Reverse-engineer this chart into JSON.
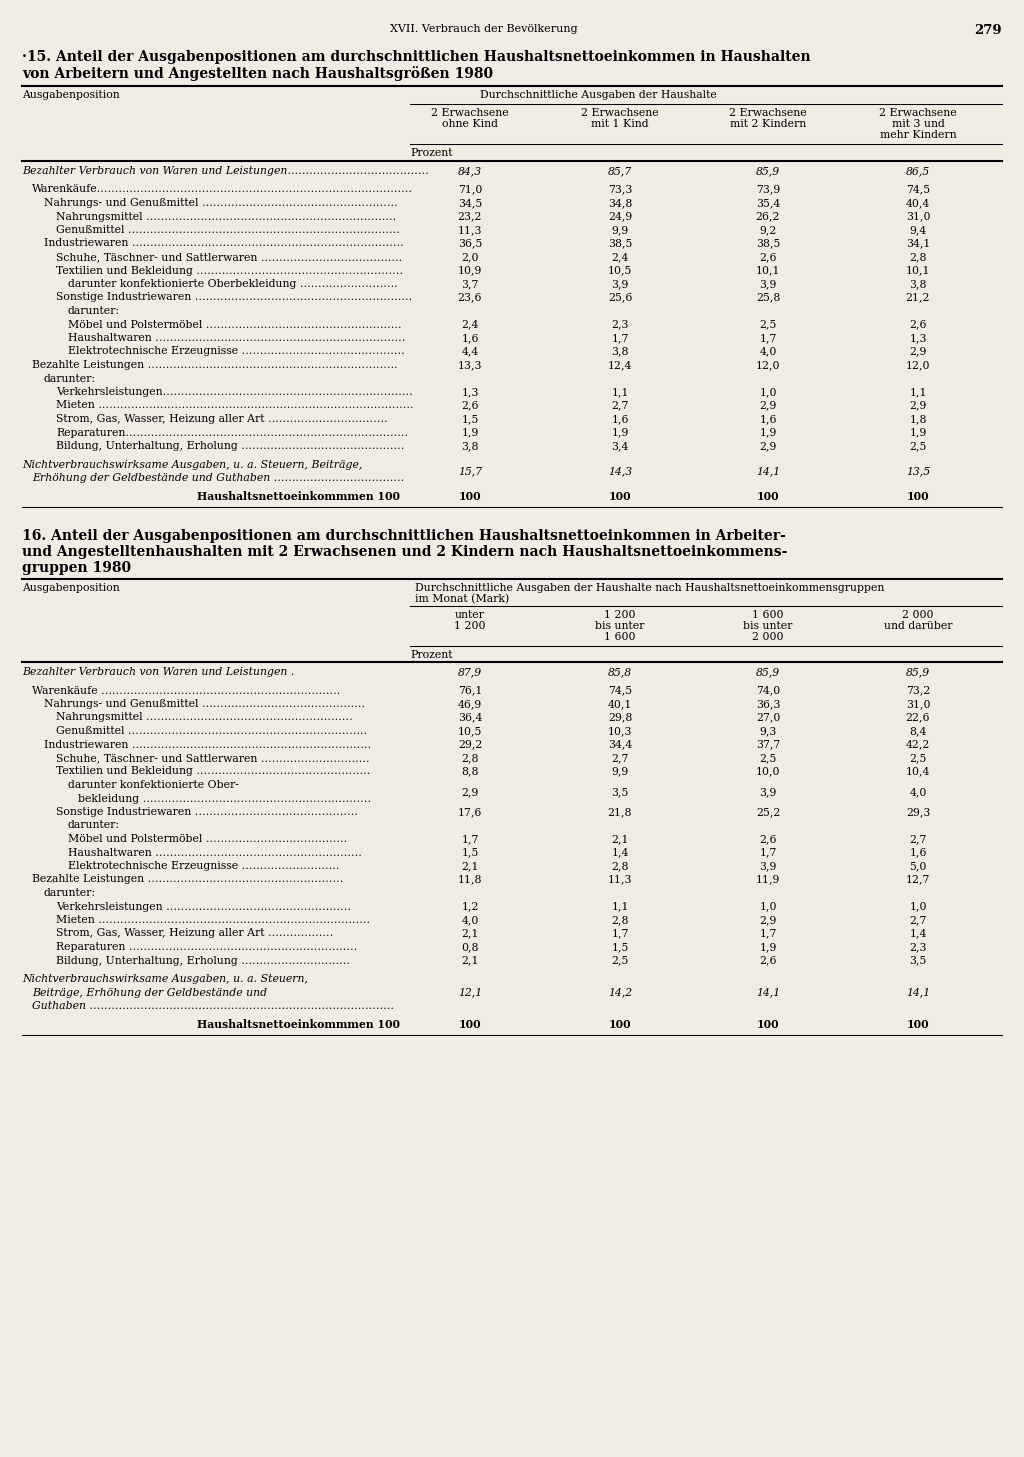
{
  "page_header": "XVII. Verbrauch der Bevölkerung",
  "page_number": "279",
  "bg": "#f0ece4",
  "table1": {
    "title_line1": "·15. Anteil der Ausgabenpositionen am durchschnittlichen Haushaltsnettoeinkommen in Haushalten",
    "title_line2": "von Arbeitern und Angestellten nach Haushaltsgrößen 1980",
    "col_header_main": "Durchschnittliche Ausgaben der Haushalte",
    "col_header_left": "Ausgabenposition",
    "col_headers": [
      [
        "2 Erwachsene",
        "ohne Kind"
      ],
      [
        "2 Erwachsene",
        "mit 1 Kind"
      ],
      [
        "2 Erwachsene",
        "mit 2 Kindern"
      ],
      [
        "2 Erwachsene",
        "mit 3 und",
        "mehr Kindern"
      ]
    ],
    "prozent_label": "Prozent",
    "rows": [
      {
        "label": "Bezahlter Verbrauch von Waren und Leistungen…………………………………",
        "indent": 0,
        "italic": true,
        "bold": false,
        "multiline": false,
        "values": [
          "84,3",
          "85,7",
          "85,9",
          "86,5"
        ],
        "spacer_before": false
      },
      {
        "label": "Warenkäufe……………………………………………………………………………",
        "indent": 1,
        "italic": false,
        "bold": false,
        "multiline": false,
        "values": [
          "71,0",
          "73,3",
          "73,9",
          "74,5"
        ],
        "spacer_before": true
      },
      {
        "label": "Nahrungs- und Genußmittel ………………………………………………",
        "indent": 2,
        "italic": false,
        "bold": false,
        "multiline": false,
        "values": [
          "34,5",
          "34,8",
          "35,4",
          "40,4"
        ],
        "spacer_before": false
      },
      {
        "label": "Nahrungsmittel ……………………………………………………………",
        "indent": 3,
        "italic": false,
        "bold": false,
        "multiline": false,
        "values": [
          "23,2",
          "24,9",
          "26,2",
          "31,0"
        ],
        "spacer_before": false
      },
      {
        "label": "Genußmittel …………………………………………………………………",
        "indent": 3,
        "italic": false,
        "bold": false,
        "multiline": false,
        "values": [
          "11,3",
          "9,9",
          "9,2",
          "9,4"
        ],
        "spacer_before": false
      },
      {
        "label": "Industriewaren …………………………………………………………………",
        "indent": 2,
        "italic": false,
        "bold": false,
        "multiline": false,
        "values": [
          "36,5",
          "38,5",
          "38,5",
          "34,1"
        ],
        "spacer_before": false
      },
      {
        "label": "Schuhe, Täschner- und Sattlerwaren …………………………………",
        "indent": 3,
        "italic": false,
        "bold": false,
        "multiline": false,
        "values": [
          "2,0",
          "2,4",
          "2,6",
          "2,8"
        ],
        "spacer_before": false
      },
      {
        "label": "Textilien und Bekleidung …………………………………………………",
        "indent": 3,
        "italic": false,
        "bold": false,
        "multiline": false,
        "values": [
          "10,9",
          "10,5",
          "10,1",
          "10,1"
        ],
        "spacer_before": false
      },
      {
        "label": "darunter konfektionierte Oberbekleidung ………………………",
        "indent": 4,
        "italic": false,
        "bold": false,
        "multiline": false,
        "values": [
          "3,7",
          "3,9",
          "3,9",
          "3,8"
        ],
        "spacer_before": false
      },
      {
        "label": "Sonstige Industriewaren ……………………………………………………",
        "indent": 3,
        "italic": false,
        "bold": false,
        "multiline": false,
        "values": [
          "23,6",
          "25,6",
          "25,8",
          "21,2"
        ],
        "spacer_before": false
      },
      {
        "label": "darunter:",
        "indent": 4,
        "italic": false,
        "bold": false,
        "multiline": false,
        "values": [
          "",
          "",
          "",
          ""
        ],
        "spacer_before": false
      },
      {
        "label": "Möbel und Polstermöbel ………………………………………………",
        "indent": 4,
        "italic": false,
        "bold": false,
        "multiline": false,
        "values": [
          "2,4",
          "2,3",
          "2,5",
          "2,6"
        ],
        "spacer_before": false
      },
      {
        "label": "Haushaltwaren ……………………………………………………………",
        "indent": 4,
        "italic": false,
        "bold": false,
        "multiline": false,
        "values": [
          "1,6",
          "1,7",
          "1,7",
          "1,3"
        ],
        "spacer_before": false
      },
      {
        "label": "Elektrotechnische Erzeugnisse ………………………………………",
        "indent": 4,
        "italic": false,
        "bold": false,
        "multiline": false,
        "values": [
          "4,4",
          "3,8",
          "4,0",
          "2,9"
        ],
        "spacer_before": false
      },
      {
        "label": "Bezahlte Leistungen ……………………………………………………………",
        "indent": 1,
        "italic": false,
        "bold": false,
        "multiline": false,
        "values": [
          "13,3",
          "12,4",
          "12,0",
          "12,0"
        ],
        "spacer_before": false
      },
      {
        "label": "darunter:",
        "indent": 2,
        "italic": false,
        "bold": false,
        "multiline": false,
        "values": [
          "",
          "",
          "",
          ""
        ],
        "spacer_before": false
      },
      {
        "label": "Verkehrsleistungen……………………………………………………………",
        "indent": 3,
        "italic": false,
        "bold": false,
        "multiline": false,
        "values": [
          "1,3",
          "1,1",
          "1,0",
          "1,1"
        ],
        "spacer_before": false
      },
      {
        "label": "Mieten ……………………………………………………………………………",
        "indent": 3,
        "italic": false,
        "bold": false,
        "multiline": false,
        "values": [
          "2,6",
          "2,7",
          "2,9",
          "2,9"
        ],
        "spacer_before": false
      },
      {
        "label": "Strom, Gas, Wasser, Heizung aller Art ……………………………",
        "indent": 3,
        "italic": false,
        "bold": false,
        "multiline": false,
        "values": [
          "1,5",
          "1,6",
          "1,6",
          "1,8"
        ],
        "spacer_before": false
      },
      {
        "label": "Reparaturen……………………………………………………………………",
        "indent": 3,
        "italic": false,
        "bold": false,
        "multiline": false,
        "values": [
          "1,9",
          "1,9",
          "1,9",
          "1,9"
        ],
        "spacer_before": false
      },
      {
        "label": "Bildung, Unterhaltung, Erholung ………………………………………",
        "indent": 3,
        "italic": false,
        "bold": false,
        "multiline": false,
        "values": [
          "3,8",
          "3,4",
          "2,9",
          "2,5"
        ],
        "spacer_before": false
      },
      {
        "label": "Nichtverbrauchswirksame Ausgaben, u. a. Steuern, Beiträge,",
        "indent": 0,
        "italic": true,
        "bold": false,
        "multiline": true,
        "line2": "Erhöhung der Geldbestände und Guthaben ………………………………",
        "values": [
          "15,7",
          "14,3",
          "14,1",
          "13,5"
        ],
        "spacer_before": true
      },
      {
        "label": "Haushaltsnettoeinkommmen 100",
        "indent": 9,
        "italic": false,
        "bold": true,
        "multiline": false,
        "values": [
          "100",
          "100",
          "100",
          "100"
        ],
        "spacer_before": true
      }
    ]
  },
  "table2": {
    "title_line1": "16. Anteil der Ausgabenpositionen am durchschnittlichen Haushaltsnettoeinkommen in Arbeiter-",
    "title_line2": "und Angestelltenhaushalten mit 2 Erwachsenen und 2 Kindern nach Haushaltsnettoeinkommens-",
    "title_line3": "gruppen 1980",
    "col_header_main": "Durchschnittliche Ausgaben der Haushalte nach Haushaltsnettoeinkommensgruppen",
    "col_header_main2": "im Monat (Mark)",
    "col_header_left": "Ausgabenposition",
    "col_headers": [
      [
        "unter",
        "1 200"
      ],
      [
        "1 200",
        "bis unter",
        "1 600"
      ],
      [
        "1 600",
        "bis unter",
        "2 000"
      ],
      [
        "2 000",
        "und darüber"
      ]
    ],
    "prozent_label": "Prozent",
    "rows": [
      {
        "label": "Bezahlter Verbrauch von Waren und Leistungen .",
        "indent": 0,
        "italic": true,
        "bold": false,
        "multiline": false,
        "values": [
          "87,9",
          "85,8",
          "85,9",
          "85,9"
        ],
        "spacer_before": false
      },
      {
        "label": "Warenkäufe …………………………………………………………",
        "indent": 1,
        "italic": false,
        "bold": false,
        "multiline": false,
        "values": [
          "76,1",
          "74,5",
          "74,0",
          "73,2"
        ],
        "spacer_before": true
      },
      {
        "label": "Nahrungs- und Genußmittel ………………………………………",
        "indent": 2,
        "italic": false,
        "bold": false,
        "multiline": false,
        "values": [
          "46,9",
          "40,1",
          "36,3",
          "31,0"
        ],
        "spacer_before": false
      },
      {
        "label": "Nahrungsmittel …………………………………………………",
        "indent": 3,
        "italic": false,
        "bold": false,
        "multiline": false,
        "values": [
          "36,4",
          "29,8",
          "27,0",
          "22,6"
        ],
        "spacer_before": false
      },
      {
        "label": "Genußmittel …………………………………………………………",
        "indent": 3,
        "italic": false,
        "bold": false,
        "multiline": false,
        "values": [
          "10,5",
          "10,3",
          "9,3",
          "8,4"
        ],
        "spacer_before": false
      },
      {
        "label": "Industriewaren …………………………………………………………",
        "indent": 2,
        "italic": false,
        "bold": false,
        "multiline": false,
        "values": [
          "29,2",
          "34,4",
          "37,7",
          "42,2"
        ],
        "spacer_before": false
      },
      {
        "label": "Schuhe, Täschner- und Sattlerwaren …………………………",
        "indent": 3,
        "italic": false,
        "bold": false,
        "multiline": false,
        "values": [
          "2,8",
          "2,7",
          "2,5",
          "2,5"
        ],
        "spacer_before": false
      },
      {
        "label": "Textilien und Bekleidung …………………………………………",
        "indent": 3,
        "italic": false,
        "bold": false,
        "multiline": false,
        "values": [
          "8,8",
          "9,9",
          "10,0",
          "10,4"
        ],
        "spacer_before": false
      },
      {
        "label": "darunter konfektionierte Ober-",
        "indent": 4,
        "italic": false,
        "bold": false,
        "multiline": true,
        "line2": "bekleidung ………………………………………………………",
        "values": [
          "2,9",
          "3,5",
          "3,9",
          "4,0"
        ],
        "spacer_before": false
      },
      {
        "label": "Sonstige Industriewaren ………………………………………",
        "indent": 3,
        "italic": false,
        "bold": false,
        "multiline": false,
        "values": [
          "17,6",
          "21,8",
          "25,2",
          "29,3"
        ],
        "spacer_before": false
      },
      {
        "label": "darunter:",
        "indent": 4,
        "italic": false,
        "bold": false,
        "multiline": false,
        "values": [
          "",
          "",
          "",
          ""
        ],
        "spacer_before": false
      },
      {
        "label": "Möbel und Polstermöbel …………………………………",
        "indent": 4,
        "italic": false,
        "bold": false,
        "multiline": false,
        "values": [
          "1,7",
          "2,1",
          "2,6",
          "2,7"
        ],
        "spacer_before": false
      },
      {
        "label": "Haushaltwaren …………………………………………………",
        "indent": 4,
        "italic": false,
        "bold": false,
        "multiline": false,
        "values": [
          "1,5",
          "1,4",
          "1,7",
          "1,6"
        ],
        "spacer_before": false
      },
      {
        "label": "Elektrotechnische Erzeugnisse ………………………",
        "indent": 4,
        "italic": false,
        "bold": false,
        "multiline": false,
        "values": [
          "2,1",
          "2,8",
          "3,9",
          "5,0"
        ],
        "spacer_before": false
      },
      {
        "label": "Bezahlte Leistungen ………………………………………………",
        "indent": 1,
        "italic": false,
        "bold": false,
        "multiline": false,
        "values": [
          "11,8",
          "11,3",
          "11,9",
          "12,7"
        ],
        "spacer_before": false
      },
      {
        "label": "darunter:",
        "indent": 2,
        "italic": false,
        "bold": false,
        "multiline": false,
        "values": [
          "",
          "",
          "",
          ""
        ],
        "spacer_before": false
      },
      {
        "label": "Verkehrsleistungen ……………………………………………",
        "indent": 3,
        "italic": false,
        "bold": false,
        "multiline": false,
        "values": [
          "1,2",
          "1,1",
          "1,0",
          "1,0"
        ],
        "spacer_before": false
      },
      {
        "label": "Mieten …………………………………………………………………",
        "indent": 3,
        "italic": false,
        "bold": false,
        "multiline": false,
        "values": [
          "4,0",
          "2,8",
          "2,9",
          "2,7"
        ],
        "spacer_before": false
      },
      {
        "label": "Strom, Gas, Wasser, Heizung aller Art ………………",
        "indent": 3,
        "italic": false,
        "bold": false,
        "multiline": false,
        "values": [
          "2,1",
          "1,7",
          "1,7",
          "1,4"
        ],
        "spacer_before": false
      },
      {
        "label": "Reparaturen ………………………………………………………",
        "indent": 3,
        "italic": false,
        "bold": false,
        "multiline": false,
        "values": [
          "0,8",
          "1,5",
          "1,9",
          "2,3"
        ],
        "spacer_before": false
      },
      {
        "label": "Bildung, Unterhaltung, Erholung …………………………",
        "indent": 3,
        "italic": false,
        "bold": false,
        "multiline": false,
        "values": [
          "2,1",
          "2,5",
          "2,6",
          "3,5"
        ],
        "spacer_before": false
      },
      {
        "label": "Nichtverbrauchswirksame Ausgaben, u. a. Steuern,",
        "indent": 0,
        "italic": true,
        "bold": false,
        "multiline": true,
        "line2": "Beiträge, Erhöhung der Geldbestände und",
        "line3": "Guthaben …………………………………………………………………………",
        "values": [
          "12,1",
          "14,2",
          "14,1",
          "14,1"
        ],
        "spacer_before": true
      },
      {
        "label": "Haushaltsnettoeinkommmen 100",
        "indent": 9,
        "italic": false,
        "bold": true,
        "multiline": false,
        "values": [
          "100",
          "100",
          "100",
          "100"
        ],
        "spacer_before": true
      }
    ]
  }
}
